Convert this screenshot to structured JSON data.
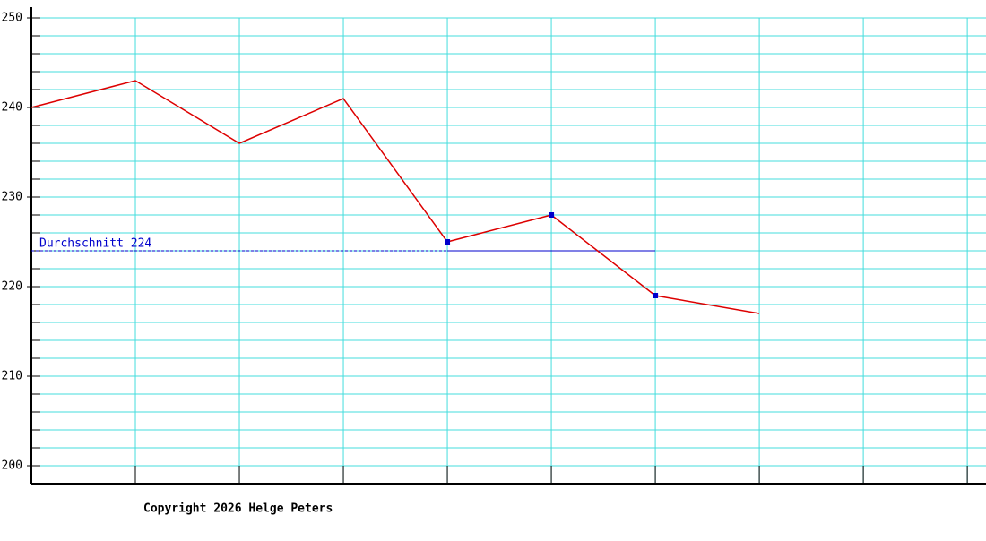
{
  "chart_data": {
    "type": "line",
    "x": [
      0,
      1,
      2,
      3,
      4,
      5,
      6,
      7
    ],
    "series": [
      {
        "color": "#dd0000",
        "values": [
          240,
          243,
          236,
          241,
          225,
          228,
          219,
          217
        ]
      }
    ],
    "highlight_points": [
      4,
      5,
      6
    ],
    "highlight_color": "#0000cc",
    "xlim": [
      0,
      9.18
    ],
    "xticks": [
      1,
      2,
      3,
      4,
      5,
      6,
      7,
      8,
      9
    ],
    "ylim": [
      198,
      251.2
    ],
    "yticks": [
      200,
      210,
      220,
      230,
      240,
      250
    ],
    "minor_yticks": [
      200,
      202,
      204,
      206,
      208,
      210,
      212,
      214,
      216,
      218,
      220,
      222,
      224,
      226,
      228,
      230,
      232,
      234,
      236,
      238,
      240,
      242,
      244,
      246,
      248,
      250
    ],
    "grid": true,
    "grid_color": "#44dddd",
    "average": {
      "label": "Durchschnitt 224",
      "value": 224,
      "dashed_x": [
        0,
        4
      ],
      "solid_x": [
        4,
        6
      ],
      "color": "#0000cc"
    },
    "footer": "Copyright 2026 Helge Peters"
  }
}
